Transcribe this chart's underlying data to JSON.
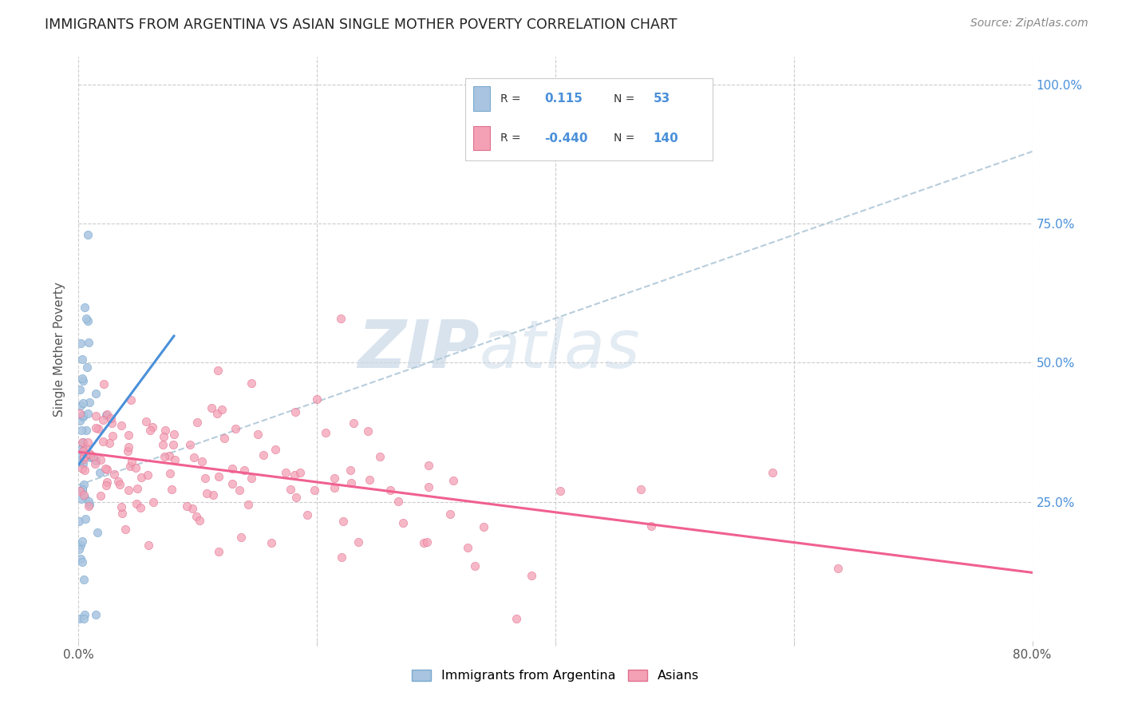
{
  "title": "IMMIGRANTS FROM ARGENTINA VS ASIAN SINGLE MOTHER POVERTY CORRELATION CHART",
  "source": "Source: ZipAtlas.com",
  "ylabel": "Single Mother Poverty",
  "x_min": 0.0,
  "x_max": 0.8,
  "y_min": 0.0,
  "y_max": 1.05,
  "y_ticks": [
    0.25,
    0.5,
    0.75,
    1.0
  ],
  "y_tick_labels": [
    "25.0%",
    "50.0%",
    "75.0%",
    "100.0%"
  ],
  "legend_label1": "Immigrants from Argentina",
  "legend_label2": "Asians",
  "R1": 0.115,
  "N1": 53,
  "R2": -0.44,
  "N2": 140,
  "color_argentina": "#a8c4e0",
  "color_asians": "#f4a0b5",
  "color_argentina_edge": "#7aaad0",
  "color_asians_edge": "#e07090",
  "color_argentina_line": "#4a90d9",
  "color_asians_line": "#f06090",
  "color_dashed": "#b0c8d8",
  "watermark_zip": "ZIP",
  "watermark_atlas": "atlas",
  "watermark_color": "#c8d8e8",
  "background_color": "#ffffff",
  "grid_color": "#cccccc",
  "title_color": "#222222",
  "source_color": "#888888",
  "right_tick_color": "#4a90d9",
  "legend_text_color": "#333333",
  "legend_value_color": "#4a90d9"
}
